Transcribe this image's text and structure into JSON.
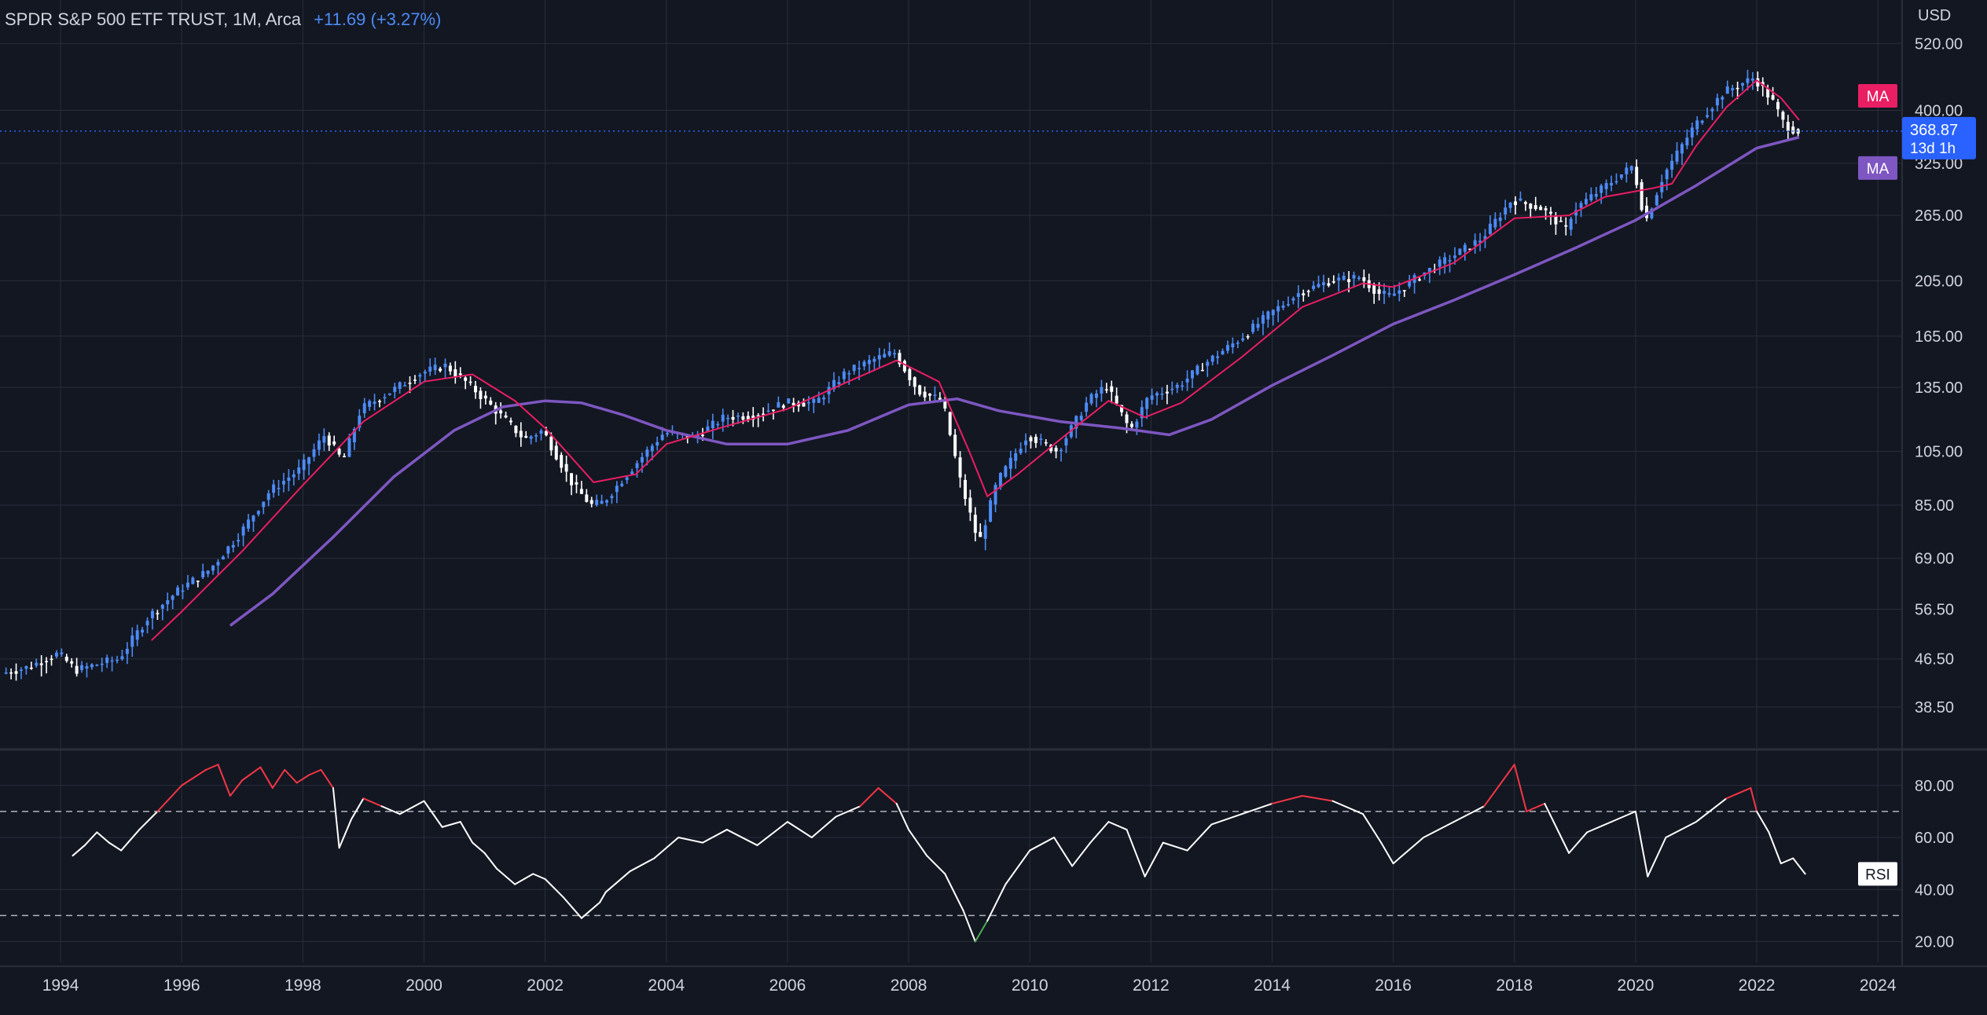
{
  "header": {
    "symbol": "SPDR S&P 500 ETF TRUST, 1M, Arca",
    "change": "+11.69 (+3.27%)"
  },
  "colors": {
    "background": "#131722",
    "grid": "#2a2e39",
    "text": "#d1d4dc",
    "candle_up": "#4c8bf5",
    "candle_down": "#ffffff",
    "ma_fast": "#e91e63",
    "ma_slow": "#7e57c2",
    "rsi_line": "#ffffff",
    "rsi_overbought": "#f23645",
    "rsi_oversold": "#4caf50",
    "last_price_bg": "#2962ff"
  },
  "price_axis": {
    "currency": "USD",
    "ticks": [
      "520.00",
      "400.00",
      "325.00",
      "265.00",
      "205.00",
      "165.00",
      "135.00",
      "105.00",
      "85.00",
      "69.00",
      "56.50",
      "46.50",
      "38.50"
    ],
    "last_price": "368.87",
    "countdown": "13d 1h",
    "ma_fast_label": "MA",
    "ma_slow_label": "MA"
  },
  "rsi_axis": {
    "label": "RSI",
    "ticks": [
      "80.00",
      "60.00",
      "40.00",
      "20.00"
    ],
    "upper_band": 70,
    "lower_band": 30
  },
  "time_axis": {
    "ticks": [
      "1994",
      "1996",
      "1998",
      "2000",
      "2002",
      "2004",
      "2006",
      "2008",
      "2010",
      "2012",
      "2014",
      "2016",
      "2018",
      "2020",
      "2022",
      "2024"
    ]
  },
  "chart_data": [
    {
      "type": "candlestick",
      "title": "SPDR S&P 500 ETF TRUST, 1M, Arca",
      "y_scale": "log",
      "ylim": [
        33,
        580
      ],
      "xlim": [
        1993.0,
        2024.4
      ],
      "grid": true,
      "series": [
        {
          "name": "",
          "kind": "close_path",
          "points": [
            [
              1993.1,
              44
            ],
            [
              1993.5,
              45
            ],
            [
              1994.0,
              47.5
            ],
            [
              1994.3,
              44.5
            ],
            [
              1994.8,
              46
            ],
            [
              1995.0,
              46.5
            ],
            [
              1995.5,
              55
            ],
            [
              1996.0,
              61
            ],
            [
              1996.5,
              66
            ],
            [
              1997.0,
              76
            ],
            [
              1997.5,
              90
            ],
            [
              1998.0,
              98
            ],
            [
              1998.4,
              112
            ],
            [
              1998.7,
              101
            ],
            [
              1999.0,
              124
            ],
            [
              1999.5,
              133
            ],
            [
              2000.0,
              143
            ],
            [
              2000.4,
              147
            ],
            [
              2000.8,
              136
            ],
            [
              2001.2,
              124
            ],
            [
              2001.7,
              110
            ],
            [
              2002.0,
              114
            ],
            [
              2002.5,
              92
            ],
            [
              2002.8,
              85
            ],
            [
              2003.0,
              86
            ],
            [
              2003.5,
              99
            ],
            [
              2004.0,
              113
            ],
            [
              2004.5,
              111
            ],
            [
              2005.0,
              120
            ],
            [
              2005.5,
              121
            ],
            [
              2006.0,
              127
            ],
            [
              2006.5,
              127
            ],
            [
              2007.0,
              143
            ],
            [
              2007.5,
              151
            ],
            [
              2007.8,
              155
            ],
            [
              2008.2,
              133
            ],
            [
              2008.6,
              128
            ],
            [
              2008.9,
              93
            ],
            [
              2009.2,
              73
            ],
            [
              2009.5,
              93
            ],
            [
              2010.0,
              112
            ],
            [
              2010.5,
              105
            ],
            [
              2011.0,
              128
            ],
            [
              2011.3,
              136
            ],
            [
              2011.7,
              114
            ],
            [
              2012.0,
              130
            ],
            [
              2012.5,
              136
            ],
            [
              2013.0,
              150
            ],
            [
              2013.5,
              163
            ],
            [
              2014.0,
              180
            ],
            [
              2014.5,
              196
            ],
            [
              2015.0,
              205
            ],
            [
              2015.5,
              208
            ],
            [
              2015.8,
              195
            ],
            [
              2016.0,
              193
            ],
            [
              2016.5,
              210
            ],
            [
              2017.0,
              225
            ],
            [
              2017.5,
              242
            ],
            [
              2018.0,
              282
            ],
            [
              2018.5,
              272
            ],
            [
              2018.9,
              250
            ],
            [
              2019.0,
              270
            ],
            [
              2019.5,
              295
            ],
            [
              2020.0,
              322
            ],
            [
              2020.2,
              258
            ],
            [
              2020.5,
              310
            ],
            [
              2021.0,
              375
            ],
            [
              2021.5,
              430
            ],
            [
              2022.0,
              455
            ],
            [
              2022.3,
              415
            ],
            [
              2022.5,
              378
            ],
            [
              2022.7,
              368.87
            ]
          ]
        },
        {
          "name": "MA",
          "kind": "moving_average_fast",
          "points": [
            [
              1995.5,
              50
            ],
            [
              1996.0,
              56
            ],
            [
              1997.0,
              71
            ],
            [
              1998.0,
              92
            ],
            [
              1999.0,
              118
            ],
            [
              2000.0,
              138
            ],
            [
              2000.8,
              142
            ],
            [
              2001.5,
              128
            ],
            [
              2002.0,
              115
            ],
            [
              2002.8,
              93
            ],
            [
              2003.5,
              96
            ],
            [
              2004.0,
              108
            ],
            [
              2005.0,
              116
            ],
            [
              2006.0,
              124
            ],
            [
              2007.0,
              138
            ],
            [
              2007.8,
              150
            ],
            [
              2008.5,
              138
            ],
            [
              2009.0,
              105
            ],
            [
              2009.3,
              88
            ],
            [
              2009.8,
              96
            ],
            [
              2010.5,
              110
            ],
            [
              2011.3,
              128
            ],
            [
              2011.9,
              120
            ],
            [
              2012.5,
              127
            ],
            [
              2013.5,
              152
            ],
            [
              2014.5,
              185
            ],
            [
              2015.5,
              203
            ],
            [
              2016.0,
              200
            ],
            [
              2017.0,
              220
            ],
            [
              2018.0,
              262
            ],
            [
              2018.9,
              265
            ],
            [
              2019.5,
              285
            ],
            [
              2020.3,
              295
            ],
            [
              2020.6,
              300
            ],
            [
              2021.0,
              348
            ],
            [
              2021.5,
              405
            ],
            [
              2022.0,
              450
            ],
            [
              2022.4,
              420
            ],
            [
              2022.7,
              385
            ]
          ]
        },
        {
          "name": "MA",
          "kind": "moving_average_slow",
          "points": [
            [
              1996.8,
              53
            ],
            [
              1997.5,
              60
            ],
            [
              1998.5,
              75
            ],
            [
              1999.5,
              95
            ],
            [
              2000.5,
              114
            ],
            [
              2001.3,
              125
            ],
            [
              2002.0,
              128
            ],
            [
              2002.6,
              127
            ],
            [
              2003.3,
              121
            ],
            [
              2004.0,
              114
            ],
            [
              2005.0,
              108
            ],
            [
              2006.0,
              108
            ],
            [
              2007.0,
              114
            ],
            [
              2008.0,
              126
            ],
            [
              2008.8,
              129
            ],
            [
              2009.5,
              123
            ],
            [
              2010.5,
              118
            ],
            [
              2011.5,
              115
            ],
            [
              2012.3,
              112
            ],
            [
              2013.0,
              119
            ],
            [
              2014.0,
              136
            ],
            [
              2015.0,
              153
            ],
            [
              2016.0,
              173
            ],
            [
              2017.0,
              190
            ],
            [
              2018.0,
              210
            ],
            [
              2019.0,
              233
            ],
            [
              2020.0,
              260
            ],
            [
              2021.0,
              298
            ],
            [
              2022.0,
              345
            ],
            [
              2022.7,
              360
            ]
          ]
        }
      ]
    },
    {
      "type": "line",
      "title": "RSI",
      "ylim": [
        12,
        92
      ],
      "xlim": [
        1993.0,
        2024.4
      ],
      "bands": [
        30,
        70
      ],
      "series": [
        {
          "name": "RSI",
          "points": [
            [
              1994.2,
              53
            ],
            [
              1994.4,
              57
            ],
            [
              1994.6,
              62
            ],
            [
              1994.8,
              58
            ],
            [
              1995.0,
              55
            ],
            [
              1995.3,
              63
            ],
            [
              1995.6,
              70
            ],
            [
              1996.0,
              80
            ],
            [
              1996.4,
              86
            ],
            [
              1996.6,
              88
            ],
            [
              1996.8,
              76
            ],
            [
              1997.0,
              82
            ],
            [
              1997.3,
              87
            ],
            [
              1997.5,
              79
            ],
            [
              1997.7,
              86
            ],
            [
              1997.9,
              81
            ],
            [
              1998.1,
              84
            ],
            [
              1998.3,
              86
            ],
            [
              1998.5,
              79
            ],
            [
              1998.6,
              56
            ],
            [
              1998.8,
              67
            ],
            [
              1999.0,
              75
            ],
            [
              1999.3,
              72
            ],
            [
              1999.6,
              69
            ],
            [
              2000.0,
              74
            ],
            [
              2000.3,
              64
            ],
            [
              2000.6,
              66
            ],
            [
              2000.8,
              58
            ],
            [
              2001.0,
              54
            ],
            [
              2001.2,
              48
            ],
            [
              2001.5,
              42
            ],
            [
              2001.8,
              46
            ],
            [
              2002.0,
              44
            ],
            [
              2002.3,
              37
            ],
            [
              2002.6,
              29
            ],
            [
              2002.9,
              35
            ],
            [
              2003.0,
              39
            ],
            [
              2003.4,
              47
            ],
            [
              2003.8,
              52
            ],
            [
              2004.2,
              60
            ],
            [
              2004.6,
              58
            ],
            [
              2005.0,
              63
            ],
            [
              2005.5,
              57
            ],
            [
              2006.0,
              66
            ],
            [
              2006.4,
              60
            ],
            [
              2006.8,
              68
            ],
            [
              2007.2,
              72
            ],
            [
              2007.5,
              79
            ],
            [
              2007.8,
              73
            ],
            [
              2008.0,
              63
            ],
            [
              2008.3,
              53
            ],
            [
              2008.6,
              46
            ],
            [
              2008.9,
              32
            ],
            [
              2009.1,
              20
            ],
            [
              2009.3,
              28
            ],
            [
              2009.6,
              42
            ],
            [
              2010.0,
              55
            ],
            [
              2010.4,
              60
            ],
            [
              2010.7,
              49
            ],
            [
              2011.0,
              58
            ],
            [
              2011.3,
              66
            ],
            [
              2011.6,
              63
            ],
            [
              2011.9,
              45
            ],
            [
              2012.2,
              58
            ],
            [
              2012.6,
              55
            ],
            [
              2013.0,
              65
            ],
            [
              2013.5,
              69
            ],
            [
              2014.0,
              73
            ],
            [
              2014.5,
              76
            ],
            [
              2015.0,
              74
            ],
            [
              2015.5,
              69
            ],
            [
              2015.8,
              58
            ],
            [
              2016.0,
              50
            ],
            [
              2016.5,
              60
            ],
            [
              2017.0,
              66
            ],
            [
              2017.5,
              72
            ],
            [
              2018.0,
              88
            ],
            [
              2018.2,
              70
            ],
            [
              2018.5,
              73
            ],
            [
              2018.9,
              54
            ],
            [
              2019.2,
              62
            ],
            [
              2019.6,
              66
            ],
            [
              2020.0,
              70
            ],
            [
              2020.2,
              45
            ],
            [
              2020.5,
              60
            ],
            [
              2021.0,
              66
            ],
            [
              2021.5,
              75
            ],
            [
              2021.9,
              79
            ],
            [
              2022.0,
              70
            ],
            [
              2022.2,
              62
            ],
            [
              2022.4,
              50
            ],
            [
              2022.6,
              52
            ],
            [
              2022.8,
              46
            ]
          ]
        }
      ]
    }
  ]
}
